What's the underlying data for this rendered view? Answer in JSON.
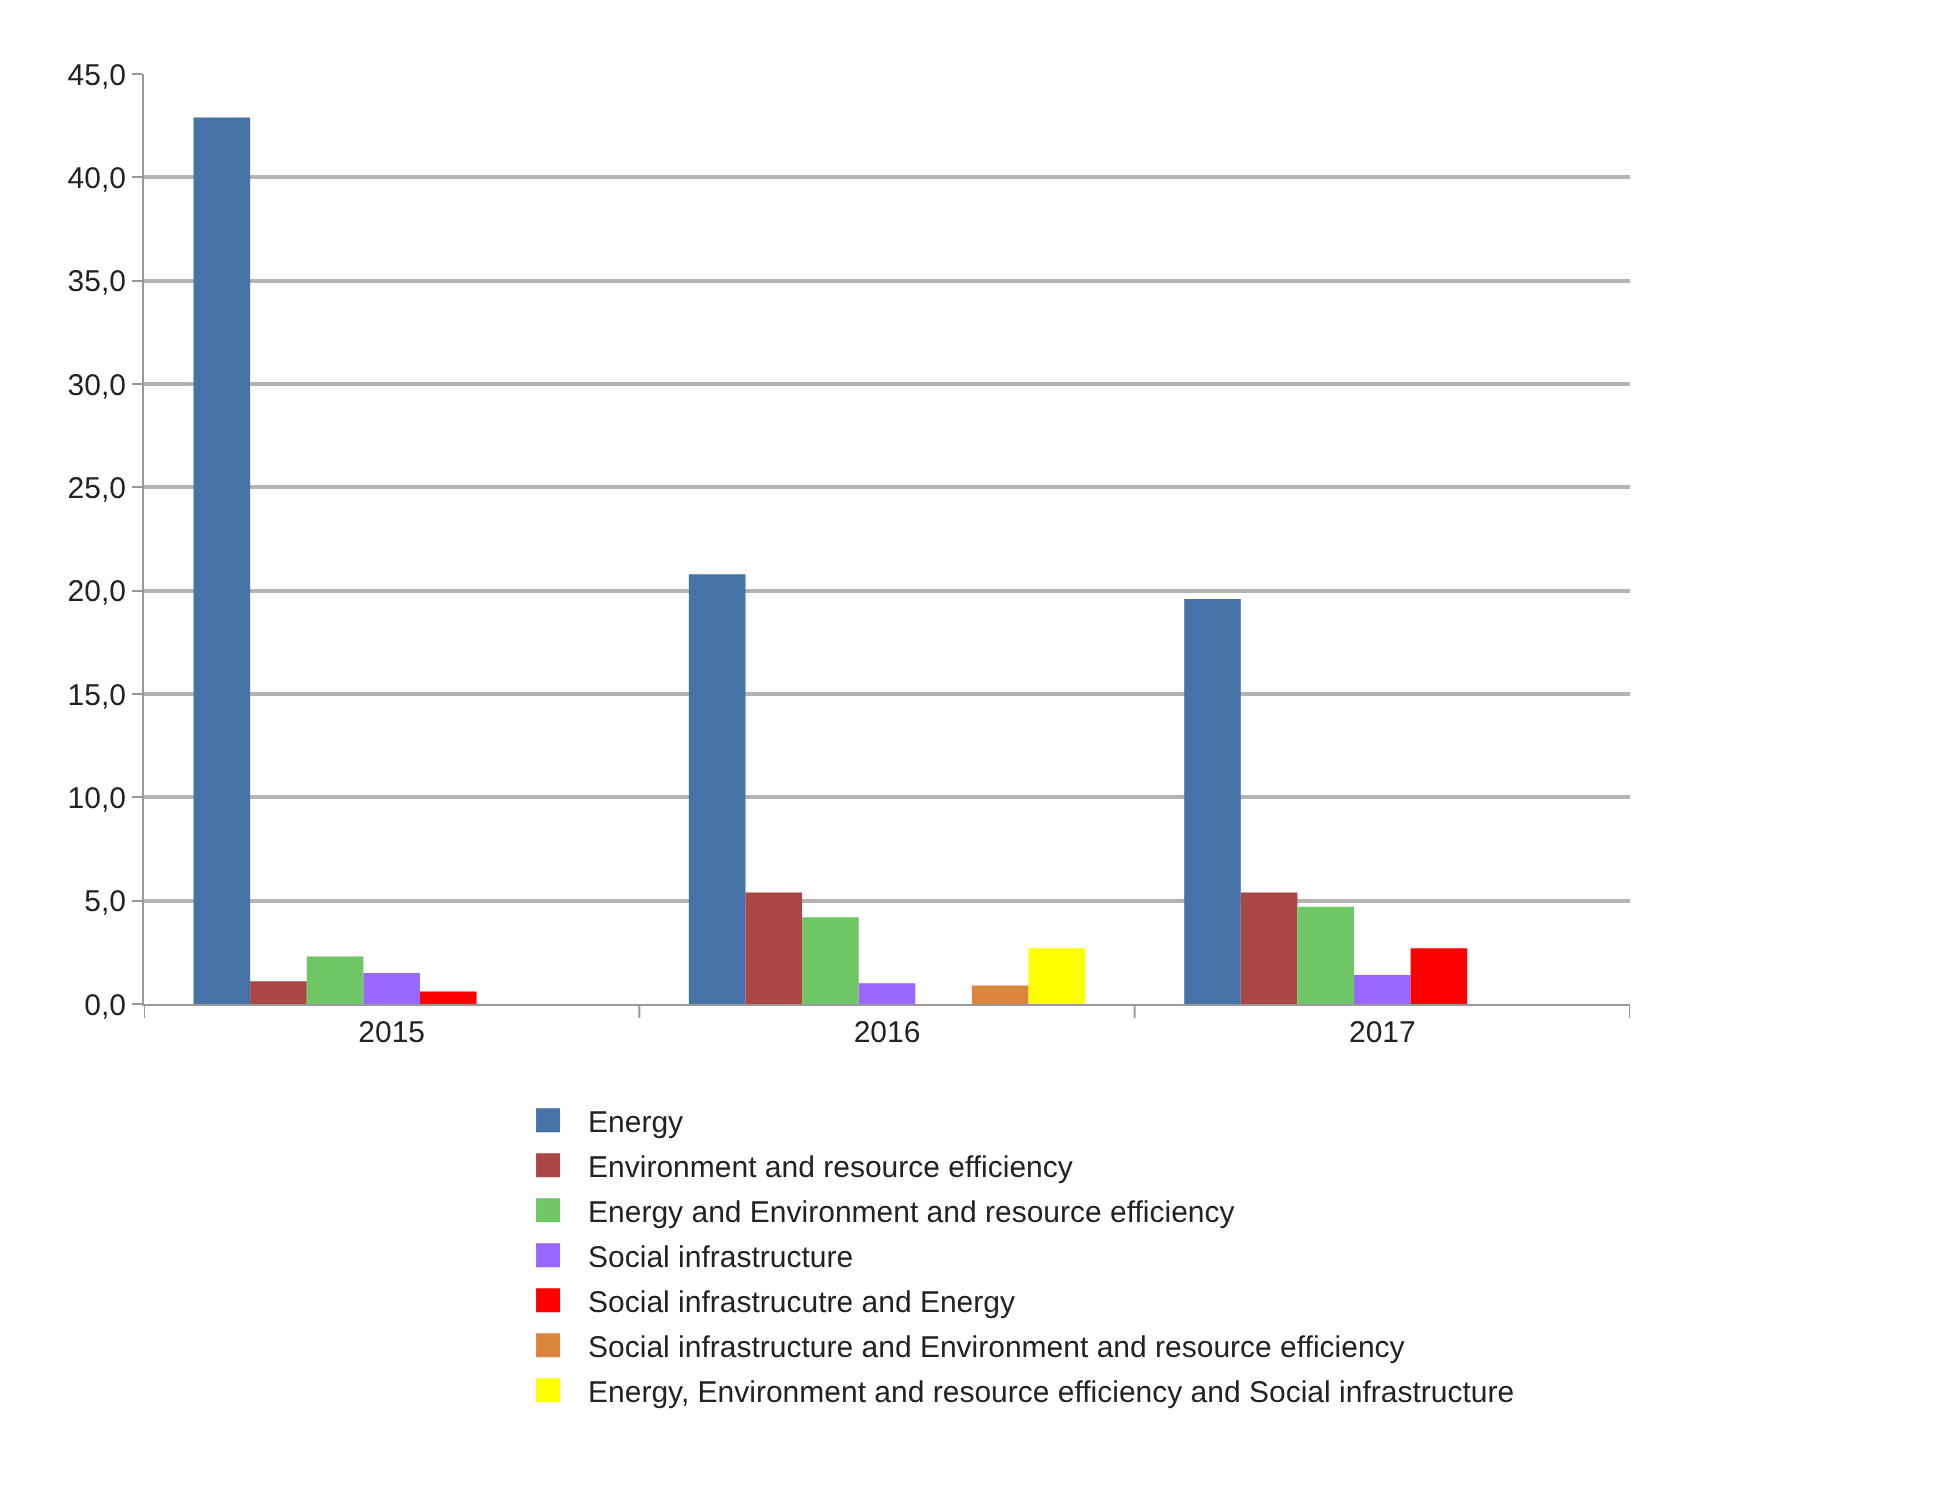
{
  "chart_data": {
    "type": "bar",
    "categories": [
      "2015",
      "2016",
      "2017"
    ],
    "series": [
      {
        "name": "Energy",
        "color": "#4572a7",
        "values": [
          42.9,
          20.8,
          19.6
        ]
      },
      {
        "name": "Environment and resource efficiency",
        "color": "#aa4643",
        "values": [
          1.1,
          5.4,
          5.4
        ]
      },
      {
        "name": "Energy and Environment and resource efficiency",
        "color": "#6ec664",
        "values": [
          2.3,
          4.2,
          4.7
        ]
      },
      {
        "name": "Social infrastructure",
        "color": "#9966ff",
        "values": [
          1.5,
          1.0,
          1.4
        ]
      },
      {
        "name": "Social infrastrucutre and Energy",
        "color": "#ff0000",
        "values": [
          0.6,
          null,
          2.7
        ]
      },
      {
        "name": "Social infrastructure and Environment and resource efficiency",
        "color": "#db843d",
        "values": [
          null,
          0.9,
          null
        ]
      },
      {
        "name": "Energy, Environment and resource efficiency and Social infrastructure",
        "color": "#ffff00",
        "values": [
          null,
          2.7,
          null
        ]
      }
    ],
    "ylim": [
      0,
      45
    ],
    "yticks": [
      {
        "value": 0,
        "label": "0,0"
      },
      {
        "value": 5,
        "label": "5,0"
      },
      {
        "value": 10,
        "label": "10,0"
      },
      {
        "value": 15,
        "label": "15,0"
      },
      {
        "value": 20,
        "label": "20,0"
      },
      {
        "value": 25,
        "label": "25,0"
      },
      {
        "value": 30,
        "label": "30,0"
      },
      {
        "value": 35,
        "label": "35,0"
      },
      {
        "value": 40,
        "label": "40,0"
      },
      {
        "value": 45,
        "label": "45,0"
      }
    ],
    "grid": "y",
    "legend": "bottom"
  }
}
